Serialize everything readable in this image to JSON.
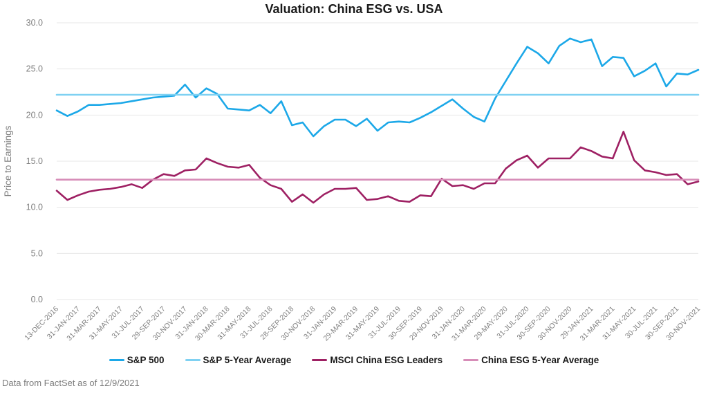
{
  "title": "Valuation: China ESG vs. USA",
  "footer": "Data from FactSet as of 12/9/2021",
  "colors": {
    "sp500": "#1ca8e8",
    "sp500_avg": "#7fd1f2",
    "msci_china": "#9e2063",
    "china_avg": "#d78db8",
    "axis_text": "#7f7f7f",
    "gridline": "#e7e7e7",
    "title_text": "#1a1a1a"
  },
  "chart_data": {
    "type": "line",
    "title": "Valuation: China ESG vs. USA",
    "xlabel": "",
    "ylabel": "Price to Earnings",
    "ylim": [
      0.0,
      30.0
    ],
    "ytick_step": 5.0,
    "ytick_labels": [
      "0.0",
      "5.0",
      "10.0",
      "15.0",
      "20.0",
      "25.0",
      "30.0"
    ],
    "grid": "horizontal",
    "legend_position": "bottom",
    "points_per_series": 61,
    "x_tick_every": 2,
    "x_tick_labels": [
      "13-DEC-2016",
      "31-JAN-2017",
      "31-MAR-2017",
      "31-MAY-2017",
      "31-JUL-2017",
      "29-SEP-2017",
      "30-NOV-2017",
      "31-JAN-2018",
      "30-MAR-2018",
      "31-MAY-2018",
      "31-JUL-2018",
      "28-SEP-2018",
      "30-NOV-2018",
      "31-JAN-2019",
      "29-MAR-2019",
      "31-MAY-2019",
      "31-JUL-2019",
      "30-SEP-2019",
      "29-NOV-2019",
      "31-JAN-2020",
      "31-MAR-2020",
      "29-MAY-2020",
      "31-JUL-2020",
      "30-SEP-2020",
      "30-NOV-2020",
      "29-JAN-2021",
      "31-MAR-2021",
      "31-MAY-2021",
      "30-JUL-2021",
      "30-SEP-2021",
      "30-NOV-2021"
    ],
    "series": [
      {
        "name": "S&P 500",
        "color_key": "sp500",
        "values": [
          20.5,
          19.9,
          20.4,
          21.1,
          21.1,
          21.2,
          21.3,
          21.5,
          21.7,
          21.9,
          22.0,
          22.1,
          23.3,
          21.9,
          22.9,
          22.3,
          20.7,
          20.6,
          20.5,
          21.1,
          20.2,
          21.5,
          18.9,
          19.2,
          17.7,
          18.8,
          19.5,
          19.5,
          18.8,
          19.6,
          18.3,
          19.2,
          19.3,
          19.2,
          19.7,
          20.3,
          21.0,
          21.7,
          20.7,
          19.8,
          19.3,
          21.8,
          23.7,
          25.6,
          27.4,
          26.7,
          25.6,
          27.5,
          28.3,
          27.9,
          28.2,
          25.3,
          26.3,
          26.2,
          24.2,
          24.8,
          25.6,
          23.1,
          24.5,
          24.4,
          24.9
        ]
      },
      {
        "name": "S&P 5-Year Average",
        "color_key": "sp500_avg",
        "constant": 22.2
      },
      {
        "name": "MSCI China ESG Leaders",
        "color_key": "msci_china",
        "values": [
          11.8,
          10.8,
          11.3,
          11.7,
          11.9,
          12.0,
          12.2,
          12.5,
          12.1,
          13.0,
          13.6,
          13.4,
          14.0,
          14.1,
          15.3,
          14.8,
          14.4,
          14.3,
          14.6,
          13.2,
          12.4,
          12.0,
          10.6,
          11.4,
          10.5,
          11.4,
          12.0,
          12.0,
          12.1,
          10.8,
          10.9,
          11.2,
          10.7,
          10.6,
          11.3,
          11.2,
          13.1,
          12.3,
          12.4,
          12.0,
          12.6,
          12.6,
          14.2,
          15.1,
          15.6,
          14.3,
          15.3,
          15.3,
          15.3,
          16.5,
          16.1,
          15.5,
          15.3,
          18.2,
          15.1,
          14.0,
          13.8,
          13.5,
          13.6,
          12.5,
          12.8
        ]
      },
      {
        "name": "China ESG 5-Year Average",
        "color_key": "china_avg",
        "constant": 13.0
      }
    ]
  }
}
